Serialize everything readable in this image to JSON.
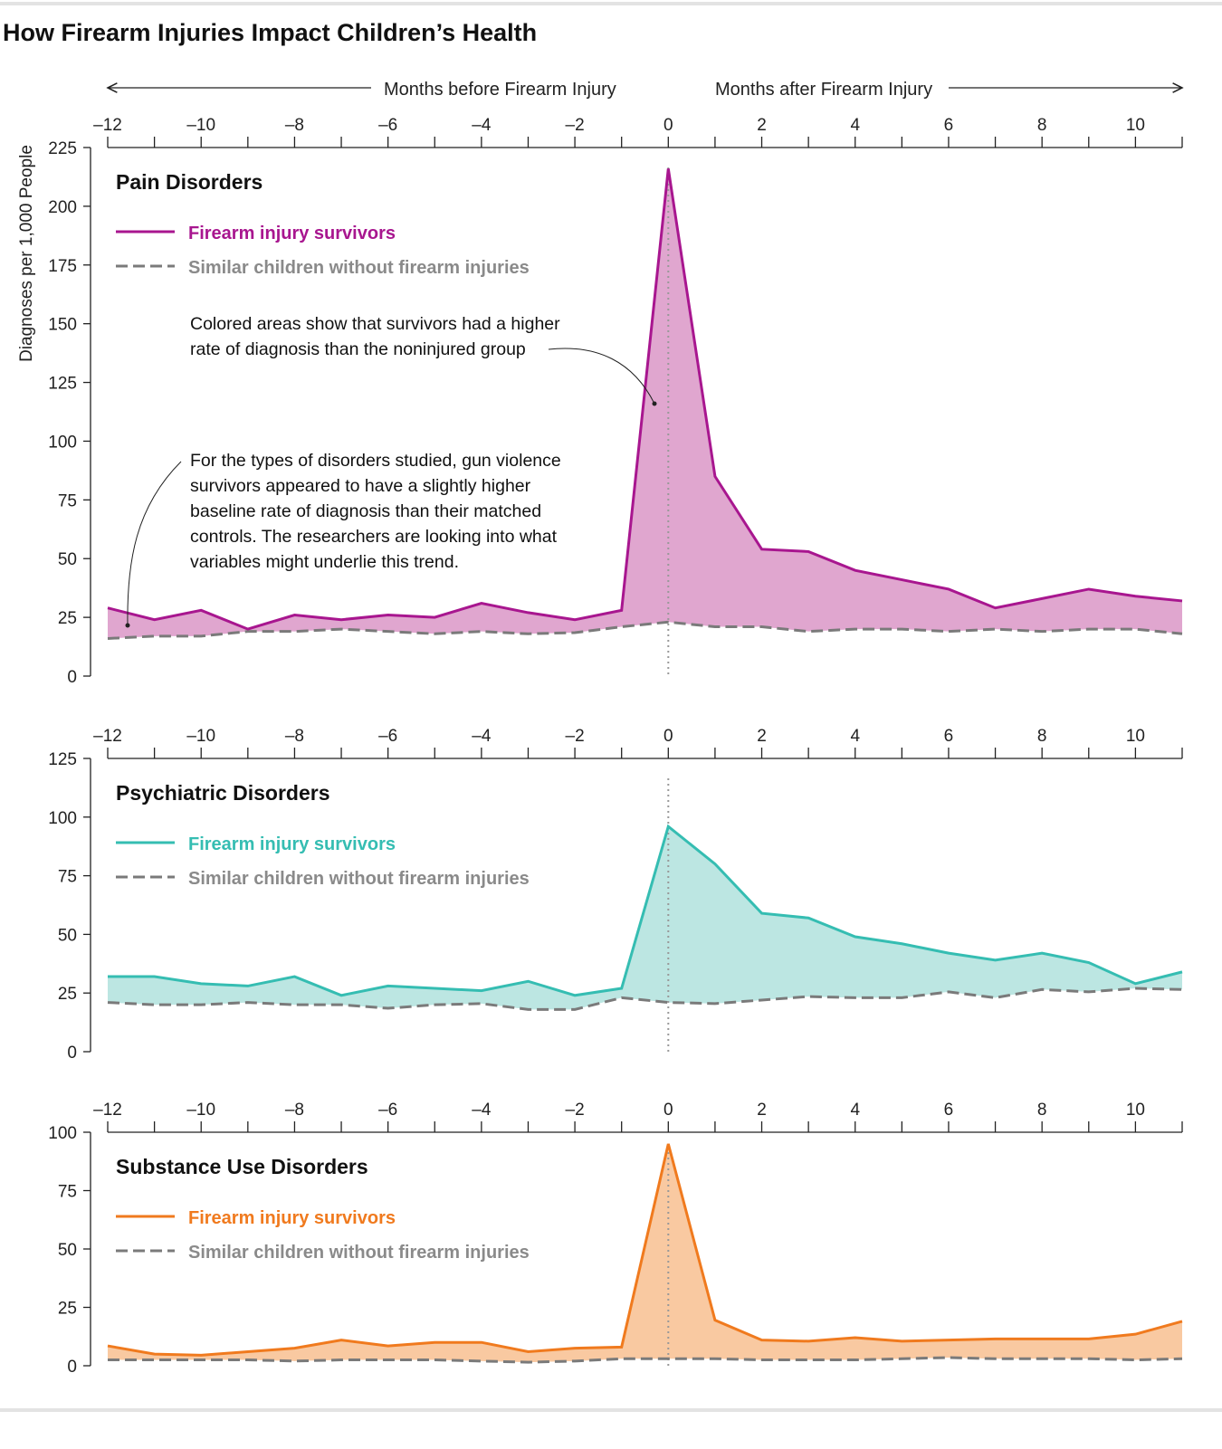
{
  "title": "How Firearm Injuries Impact Children’s Health",
  "header": {
    "before_label": "Months before Firearm Injury",
    "after_label": "Months after Firearm Injury"
  },
  "ylabel": "Diagnoses per 1,000 People",
  "colors": {
    "control": "#7a7a7a",
    "axis": "#222222"
  },
  "annotations": [
    {
      "lines": [
        "Colored areas show that survivors had a higher",
        "rate of diagnosis than the noninjured group"
      ]
    },
    {
      "lines": [
        "For the types of disorders studied, gun violence",
        "survivors appeared to have a slightly higher",
        "baseline rate of diagnosis than their matched",
        "controls. The researchers are looking into what",
        "variables might underlie this trend."
      ]
    }
  ],
  "chart_data": [
    {
      "type": "area",
      "title": "Pain Disorders",
      "x": [
        -12,
        -11,
        -10,
        -9,
        -8,
        -7,
        -6,
        -5,
        -4,
        -3,
        -2,
        -1,
        0,
        1,
        2,
        3,
        4,
        5,
        6,
        7,
        8,
        9,
        10,
        11
      ],
      "xticks": [
        "–12",
        "–10",
        "–8",
        "–6",
        "–4",
        "–2",
        "0",
        "2",
        "4",
        "6",
        "8",
        "10"
      ],
      "xlim": [
        -12,
        11
      ],
      "ylim": [
        0,
        225
      ],
      "yticks": [
        0,
        25,
        50,
        75,
        100,
        125,
        150,
        175,
        200,
        225
      ],
      "color": "#a8168f",
      "fill": "#e0a6cf",
      "series": [
        {
          "name": "Firearm injury survivors",
          "values": [
            29,
            24,
            28,
            20,
            26,
            24,
            26,
            25,
            31,
            27,
            24,
            28,
            216,
            85,
            54,
            53,
            45,
            41,
            37,
            29,
            33,
            37,
            34,
            32
          ]
        },
        {
          "name": "Similar children without firearm injuries",
          "values": [
            16,
            17,
            17,
            19,
            19,
            20,
            19,
            18,
            19,
            18,
            18.5,
            21,
            23,
            21,
            21,
            19,
            20,
            20,
            19,
            20,
            19,
            20,
            20,
            18
          ]
        }
      ]
    },
    {
      "type": "area",
      "title": "Psychiatric Disorders",
      "x": [
        -12,
        -11,
        -10,
        -9,
        -8,
        -7,
        -6,
        -5,
        -4,
        -3,
        -2,
        -1,
        0,
        1,
        2,
        3,
        4,
        5,
        6,
        7,
        8,
        9,
        10,
        11
      ],
      "xticks": [
        "–12",
        "–10",
        "–8",
        "–6",
        "–4",
        "–2",
        "0",
        "2",
        "4",
        "6",
        "8",
        "10"
      ],
      "xlim": [
        -12,
        11
      ],
      "ylim": [
        0,
        125
      ],
      "yticks": [
        0,
        25,
        50,
        75,
        100,
        125
      ],
      "color": "#35bdb2",
      "fill": "#bce6e2",
      "series": [
        {
          "name": "Firearm injury survivors",
          "values": [
            32,
            32,
            29,
            28,
            32,
            24,
            28,
            27,
            26,
            30,
            24,
            27,
            96,
            80,
            59,
            57,
            49,
            46,
            42,
            39,
            42,
            38,
            29,
            34
          ]
        },
        {
          "name": "Similar children without firearm injuries",
          "values": [
            21,
            20,
            20,
            21,
            20,
            20,
            18.5,
            20,
            20.5,
            18,
            18,
            23,
            21,
            20.5,
            22,
            23.5,
            23,
            23,
            25.5,
            23,
            26.5,
            25.5,
            27,
            26.5
          ]
        }
      ]
    },
    {
      "type": "area",
      "title": "Substance Use Disorders",
      "x": [
        -12,
        -11,
        -10,
        -9,
        -8,
        -7,
        -6,
        -5,
        -4,
        -3,
        -2,
        -1,
        0,
        1,
        2,
        3,
        4,
        5,
        6,
        7,
        8,
        9,
        10,
        11
      ],
      "xticks": [
        "–12",
        "–10",
        "–8",
        "–6",
        "–4",
        "–2",
        "0",
        "2",
        "4",
        "6",
        "8",
        "10"
      ],
      "xlim": [
        -12,
        11
      ],
      "ylim": [
        0,
        100
      ],
      "yticks": [
        0,
        25,
        50,
        75,
        100
      ],
      "color": "#f07a1e",
      "fill": "#f9c9a1",
      "series": [
        {
          "name": "Firearm injury survivors",
          "values": [
            8.5,
            5,
            4.5,
            6,
            7.5,
            11,
            8.5,
            10,
            10,
            6,
            7.5,
            8,
            95,
            19.5,
            11,
            10.5,
            12,
            10.5,
            11,
            11.5,
            11.5,
            11.5,
            13.5,
            19
          ]
        },
        {
          "name": "Similar children without firearm injuries",
          "values": [
            2.5,
            2.5,
            2.5,
            2.5,
            2,
            2.5,
            2.5,
            2.5,
            2,
            1.5,
            2,
            3,
            3,
            3,
            2.5,
            2.5,
            2.5,
            3,
            3.5,
            3,
            3,
            3,
            2.5,
            3
          ]
        }
      ]
    }
  ]
}
